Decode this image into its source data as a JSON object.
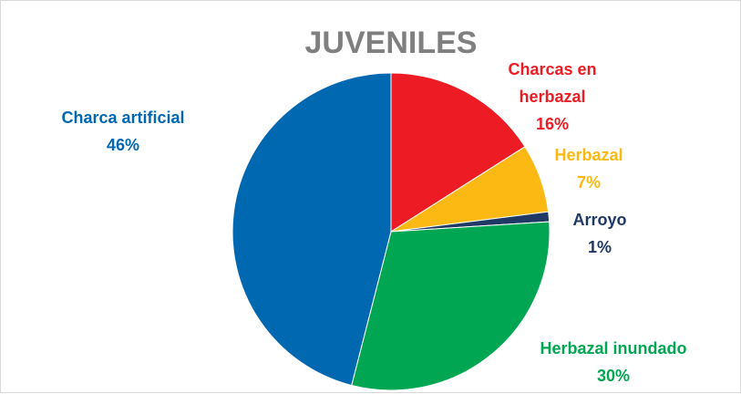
{
  "chart_data": {
    "type": "pie",
    "title": "JUVENILES",
    "start_angle_deg": 0,
    "direction": "clockwise",
    "slices": [
      {
        "label_lines": [
          "Charcas en",
          "herbazal"
        ],
        "percent_label": "16%",
        "value": 16,
        "color": "#ed1c24"
      },
      {
        "label_lines": [
          "Herbazal"
        ],
        "percent_label": "7%",
        "value": 7,
        "color": "#fdb913"
      },
      {
        "label_lines": [
          "Arroyo"
        ],
        "percent_label": "1%",
        "value": 1,
        "color": "#1f3864"
      },
      {
        "label_lines": [
          "Herbazal inundado"
        ],
        "percent_label": "30%",
        "value": 30,
        "color": "#00a651"
      },
      {
        "label_lines": [
          "Charca artificial"
        ],
        "percent_label": "46%",
        "value": 46,
        "color": "#0067b1"
      }
    ]
  }
}
